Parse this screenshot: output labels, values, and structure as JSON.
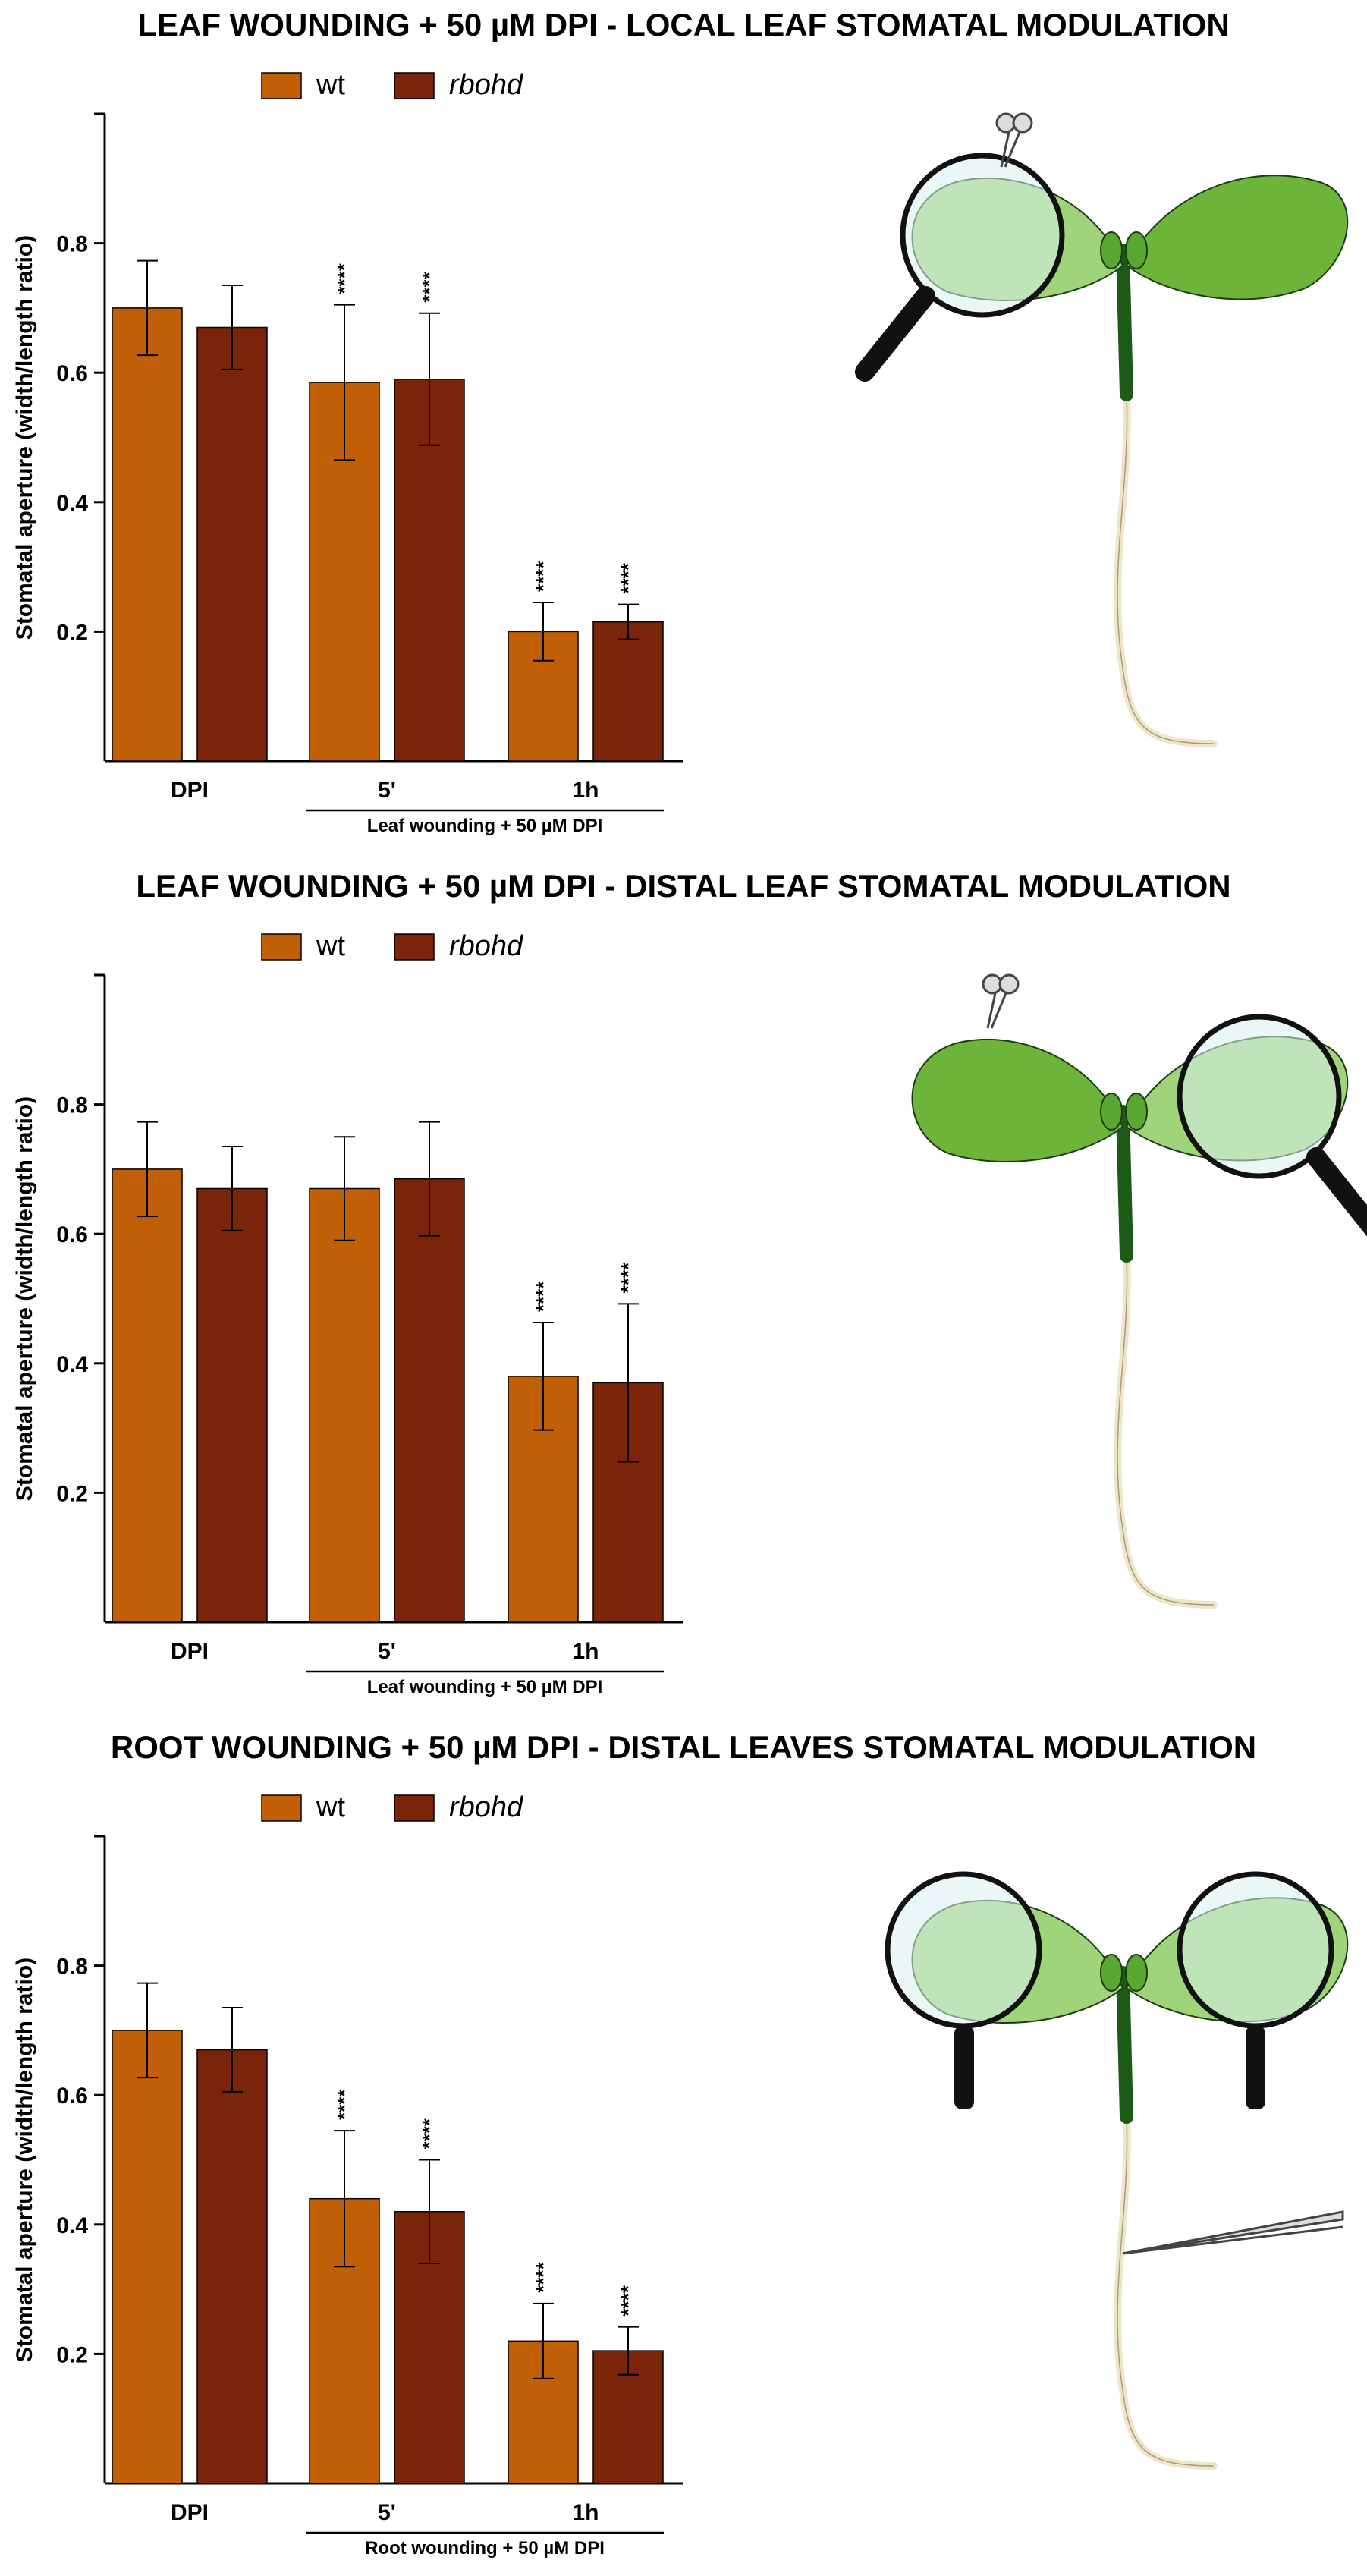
{
  "colors": {
    "wt": "#c05f06",
    "rbohd": "#7a240a",
    "axis": "#000000"
  },
  "chart_data": [
    {
      "type": "bar",
      "title": "LEAF WOUNDING + 50 µM DPI - LOCAL LEAF STOMATAL MODULATION",
      "ylabel": "Stomatal aperture (width/length ratio)",
      "ylim": [
        0,
        1.0
      ],
      "yticks": [
        "0.2",
        "0.4",
        "0.6",
        "0.8"
      ],
      "categories": [
        "DPI",
        "5'",
        "1h"
      ],
      "group_label": "Leaf wounding + 50 µM DPI",
      "legend": [
        "wt",
        "rbohd"
      ],
      "series": [
        {
          "name": "wt",
          "values": [
            0.7,
            0.585,
            0.2
          ],
          "errors": [
            0.073,
            0.12,
            0.045
          ],
          "sig": [
            "",
            "****",
            "****"
          ]
        },
        {
          "name": "rbohd",
          "values": [
            0.67,
            0.59,
            0.215
          ],
          "errors": [
            0.065,
            0.102,
            0.027
          ],
          "sig": [
            "",
            "****",
            "****"
          ]
        }
      ]
    },
    {
      "type": "bar",
      "title": "LEAF WOUNDING + 50 µM DPI - DISTAL LEAF STOMATAL MODULATION",
      "ylabel": "Stomatal aperture (width/length ratio)",
      "ylim": [
        0,
        1.0
      ],
      "yticks": [
        "0.2",
        "0.4",
        "0.6",
        "0.8"
      ],
      "categories": [
        "DPI",
        "5'",
        "1h"
      ],
      "group_label": "Leaf wounding + 50 µM DPI",
      "legend": [
        "wt",
        "rbohd"
      ],
      "series": [
        {
          "name": "wt",
          "values": [
            0.7,
            0.67,
            0.38
          ],
          "errors": [
            0.073,
            0.08,
            0.083
          ],
          "sig": [
            "",
            "",
            "****"
          ]
        },
        {
          "name": "rbohd",
          "values": [
            0.67,
            0.685,
            0.37
          ],
          "errors": [
            0.065,
            0.088,
            0.122
          ],
          "sig": [
            "",
            "",
            "****"
          ]
        }
      ]
    },
    {
      "type": "bar",
      "title": "ROOT WOUNDING + 50 µM DPI - DISTAL LEAVES STOMATAL MODULATION",
      "ylabel": "Stomatal aperture (width/length ratio)",
      "ylim": [
        0,
        1.0
      ],
      "yticks": [
        "0.2",
        "0.4",
        "0.6",
        "0.8"
      ],
      "categories": [
        "DPI",
        "5'",
        "1h"
      ],
      "group_label": "Root wounding + 50 µM DPI",
      "legend": [
        "wt",
        "rbohd"
      ],
      "series": [
        {
          "name": "wt",
          "values": [
            0.7,
            0.44,
            0.22
          ],
          "errors": [
            0.073,
            0.105,
            0.058
          ],
          "sig": [
            "",
            "****",
            "****"
          ]
        },
        {
          "name": "rbohd",
          "values": [
            0.67,
            0.42,
            0.205
          ],
          "errors": [
            0.065,
            0.08,
            0.037
          ],
          "sig": [
            "",
            "****",
            "****"
          ]
        }
      ]
    }
  ]
}
